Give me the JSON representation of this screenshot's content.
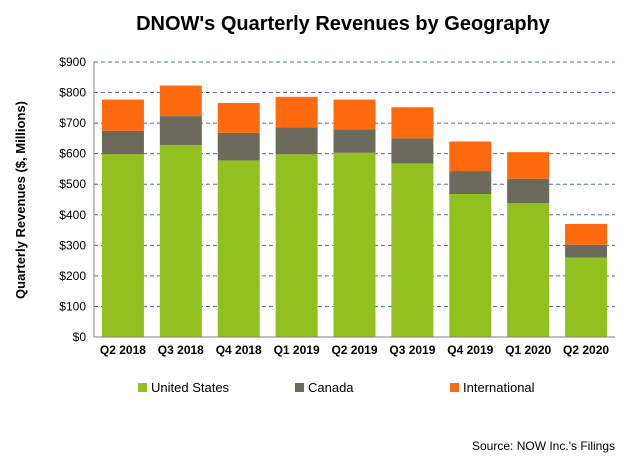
{
  "chart_data": {
    "type": "bar",
    "stacked": true,
    "title": "DNOW's Quarterly Revenues by Geography",
    "xlabel": "",
    "ylabel": "Quarterly Revenues ($, Millions)",
    "ylim": [
      0,
      900
    ],
    "yticks": [
      "$0",
      "$100",
      "$200",
      "$300",
      "$400",
      "$500",
      "$600",
      "$700",
      "$800",
      "$900"
    ],
    "grid": "horizontal dashed",
    "legend_position": "bottom",
    "categories": [
      "Q2 2018",
      "Q3 2018",
      "Q4 2018",
      "Q1 2019",
      "Q2 2019",
      "Q3 2019",
      "Q4 2019",
      "Q1 2020",
      "Q2 2020"
    ],
    "series": [
      {
        "name": "United States",
        "color": "#92C01F",
        "values": [
          598,
          628,
          578,
          598,
          603,
          568,
          468,
          438,
          260
        ]
      },
      {
        "name": "Canada",
        "color": "#6C6A5C",
        "values": [
          77,
          95,
          90,
          88,
          77,
          82,
          75,
          80,
          42
        ]
      },
      {
        "name": "International",
        "color": "#FF6A0F",
        "values": [
          102,
          100,
          98,
          100,
          97,
          102,
          97,
          87,
          68
        ]
      }
    ],
    "source": "Source: NOW Inc.'s Filings"
  }
}
